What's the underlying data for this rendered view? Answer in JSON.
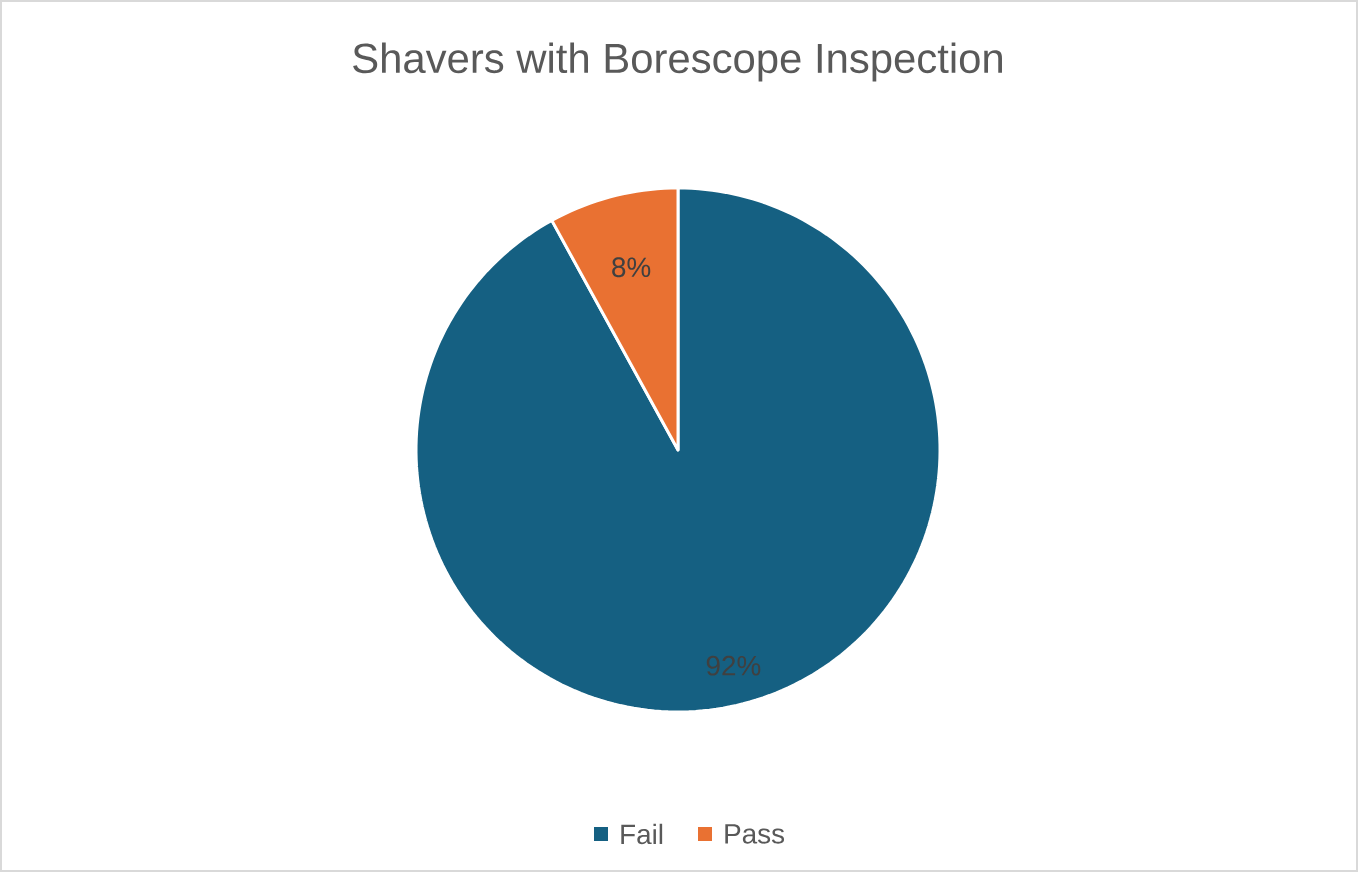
{
  "chart_data": {
    "type": "pie",
    "title": "Shavers with Borescope Inspection",
    "categories": [
      "Fail",
      "Pass"
    ],
    "values": [
      92,
      8
    ],
    "colors": [
      "#156082",
      "#e97132"
    ],
    "value_labels": [
      "92%",
      "8%"
    ],
    "legend": "bottom"
  }
}
